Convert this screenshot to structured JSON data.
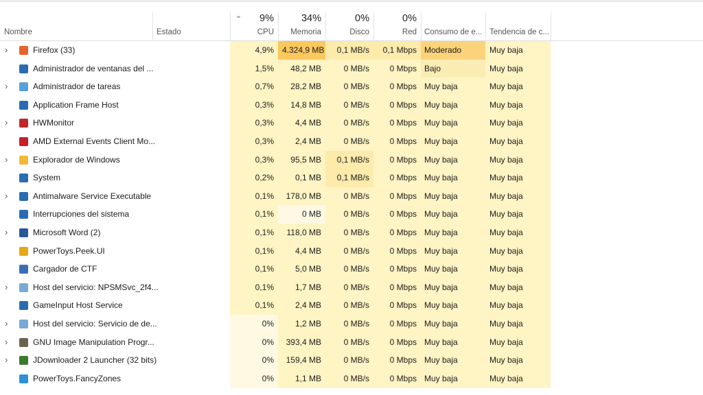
{
  "header": {
    "columns": [
      {
        "label": "Nombre"
      },
      {
        "label": "Estado"
      },
      {
        "label": "CPU",
        "percent": "9%"
      },
      {
        "label": "Memoria",
        "percent": "34%"
      },
      {
        "label": "Disco",
        "percent": "0%"
      },
      {
        "label": "Red",
        "percent": "0%"
      },
      {
        "label": "Consumo de e..."
      },
      {
        "label": "Tendencia de c..."
      }
    ]
  },
  "table": {
    "rows": [
      {
        "name": "Firefox (33)",
        "expandable": true,
        "icon": "#e8632b",
        "cpu": "4,9%",
        "memory": "4.324,9 MB",
        "disk": "0,1 MB/s",
        "network": "0,1 Mbps",
        "power": "Moderado",
        "power_color": "#fcd37a",
        "trend": "Muy baja"
      },
      {
        "name": "Administrador de ventanas del ...",
        "expandable": false,
        "icon": "#2b6cb0",
        "cpu": "1,5%",
        "memory": "48,2 MB",
        "disk": "0 MB/s",
        "network": "0 Mbps",
        "power": "Bajo",
        "power_color": "#fbecb4",
        "trend": "Muy baja"
      },
      {
        "name": "Administrador de tareas",
        "expandable": true,
        "icon": "#5aa0d8",
        "cpu": "0,7%",
        "memory": "28,2 MB",
        "disk": "0 MB/s",
        "network": "0 Mbps",
        "power": "Muy baja",
        "power_color": "#fff4c4",
        "trend": "Muy baja"
      },
      {
        "name": "Application Frame Host",
        "expandable": false,
        "icon": "#2b6cb0",
        "cpu": "0,3%",
        "memory": "14,8 MB",
        "disk": "0 MB/s",
        "network": "0 Mbps",
        "power": "Muy baja",
        "power_color": "#fff4c4",
        "trend": "Muy baja"
      },
      {
        "name": "HWMonitor",
        "expandable": true,
        "icon": "#c0262b",
        "cpu": "0,3%",
        "memory": "4,4 MB",
        "disk": "0 MB/s",
        "network": "0 Mbps",
        "power": "Muy baja",
        "power_color": "#fff4c4",
        "trend": "Muy baja"
      },
      {
        "name": "AMD External Events Client Mo...",
        "expandable": false,
        "icon": "#c81e28",
        "cpu": "0,3%",
        "memory": "2,4 MB",
        "disk": "0 MB/s",
        "network": "0 Mbps",
        "power": "Muy baja",
        "power_color": "#fff4c4",
        "trend": "Muy baja"
      },
      {
        "name": "Explorador de Windows",
        "expandable": true,
        "icon": "#f2b935",
        "cpu": "0,3%",
        "memory": "95,5 MB",
        "disk": "0,1 MB/s",
        "network": "0 Mbps",
        "power": "Muy baja",
        "power_color": "#fff4c4",
        "trend": "Muy baja"
      },
      {
        "name": "System",
        "expandable": false,
        "icon": "#2b6cb0",
        "cpu": "0,2%",
        "memory": "0,1 MB",
        "disk": "0,1 MB/s",
        "network": "0 Mbps",
        "power": "Muy baja",
        "power_color": "#fff4c4",
        "trend": "Muy baja"
      },
      {
        "name": "Antimalware Service Executable",
        "expandable": true,
        "icon": "#2b6cb0",
        "cpu": "0,1%",
        "memory": "178,0 MB",
        "disk": "0 MB/s",
        "network": "0 Mbps",
        "power": "Muy baja",
        "power_color": "#fff4c4",
        "trend": "Muy baja"
      },
      {
        "name": "Interrupciones del sistema",
        "expandable": false,
        "icon": "#2b6cb0",
        "cpu": "0,1%",
        "memory": "0 MB",
        "disk": "0 MB/s",
        "network": "0 Mbps",
        "power": "Muy baja",
        "power_color": "#fff4c4",
        "trend": "Muy baja"
      },
      {
        "name": "Microsoft Word (2)",
        "expandable": true,
        "icon": "#2b579a",
        "cpu": "0,1%",
        "memory": "118,0 MB",
        "disk": "0 MB/s",
        "network": "0 Mbps",
        "power": "Muy baja",
        "power_color": "#fff4c4",
        "trend": "Muy baja"
      },
      {
        "name": "PowerToys.Peek.UI",
        "expandable": false,
        "icon": "#e6a817",
        "cpu": "0,1%",
        "memory": "4,4 MB",
        "disk": "0 MB/s",
        "network": "0 Mbps",
        "power": "Muy baja",
        "power_color": "#fff4c4",
        "trend": "Muy baja"
      },
      {
        "name": "Cargador de CTF",
        "expandable": false,
        "icon": "#3a6fb5",
        "cpu": "0,1%",
        "memory": "5,0 MB",
        "disk": "0 MB/s",
        "network": "0 Mbps",
        "power": "Muy baja",
        "power_color": "#fff4c4",
        "trend": "Muy baja"
      },
      {
        "name": "Host del servicio: NPSMSvc_2f4...",
        "expandable": true,
        "icon": "#7aa7d6",
        "cpu": "0,1%",
        "memory": "1,7 MB",
        "disk": "0 MB/s",
        "network": "0 Mbps",
        "power": "Muy baja",
        "power_color": "#fff4c4",
        "trend": "Muy baja"
      },
      {
        "name": "GameInput Host Service",
        "expandable": false,
        "icon": "#2b6cb0",
        "cpu": "0,1%",
        "memory": "2,4 MB",
        "disk": "0 MB/s",
        "network": "0 Mbps",
        "power": "Muy baja",
        "power_color": "#fff4c4",
        "trend": "Muy baja"
      },
      {
        "name": "Host del servicio: Servicio de de...",
        "expandable": true,
        "icon": "#7aa7d6",
        "cpu": "0%",
        "memory": "1,2 MB",
        "disk": "0 MB/s",
        "network": "0 Mbps",
        "power": "Muy baja",
        "power_color": "#fff4c4",
        "trend": "Muy baja"
      },
      {
        "name": "GNU Image Manipulation Progr...",
        "expandable": true,
        "icon": "#6b6250",
        "cpu": "0%",
        "memory": "393,4 MB",
        "disk": "0 MB/s",
        "network": "0 Mbps",
        "power": "Muy baja",
        "power_color": "#fff4c4",
        "trend": "Muy baja"
      },
      {
        "name": "JDownloader 2 Launcher (32 bits)",
        "expandable": true,
        "icon": "#3b7a2a",
        "cpu": "0%",
        "memory": "159,4 MB",
        "disk": "0 MB/s",
        "network": "0 Mbps",
        "power": "Muy baja",
        "power_color": "#fff4c4",
        "trend": "Muy baja"
      },
      {
        "name": "PowerToys.FancyZones",
        "expandable": false,
        "icon": "#2f8fd8",
        "cpu": "0%",
        "memory": "1,1 MB",
        "disk": "0 MB/s",
        "network": "0 Mbps",
        "power": "Muy baja",
        "power_color": "#fff4c4",
        "trend": "Muy baja"
      }
    ]
  }
}
